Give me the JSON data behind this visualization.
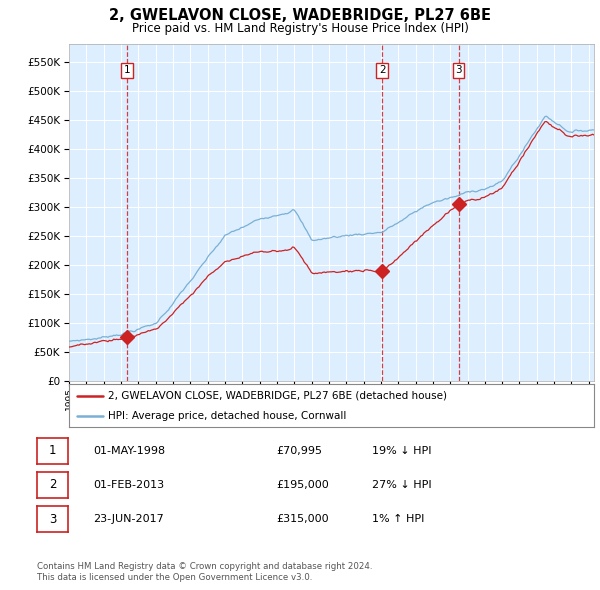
{
  "title": "2, GWELAVON CLOSE, WADEBRIDGE, PL27 6BE",
  "subtitle": "Price paid vs. HM Land Registry's House Price Index (HPI)",
  "hpi_line_color": "#7ab0d4",
  "property_line_color": "#cc2222",
  "vline_color": "#cc2222",
  "plot_bg_color": "#ddeeff",
  "ylim": [
    0,
    580000
  ],
  "yticks": [
    0,
    50000,
    100000,
    150000,
    200000,
    250000,
    300000,
    350000,
    400000,
    450000,
    500000,
    550000
  ],
  "legend_label_red": "2, GWELAVON CLOSE, WADEBRIDGE, PL27 6BE (detached house)",
  "legend_label_blue": "HPI: Average price, detached house, Cornwall",
  "sale_years": [
    1998.37,
    2013.08,
    2017.48
  ],
  "sale_prices": [
    70995,
    195000,
    315000
  ],
  "sale_labels": [
    1,
    2,
    3
  ],
  "footer_line1": "Contains HM Land Registry data © Crown copyright and database right 2024.",
  "footer_line2": "This data is licensed under the Open Government Licence v3.0.",
  "table_rows": [
    [
      "1",
      "01-MAY-1998",
      "£70,995",
      "19% ↓ HPI"
    ],
    [
      "2",
      "01-FEB-2013",
      "£195,000",
      "27% ↓ HPI"
    ],
    [
      "3",
      "23-JUN-2017",
      "£315,000",
      "1% ↑ HPI"
    ]
  ]
}
